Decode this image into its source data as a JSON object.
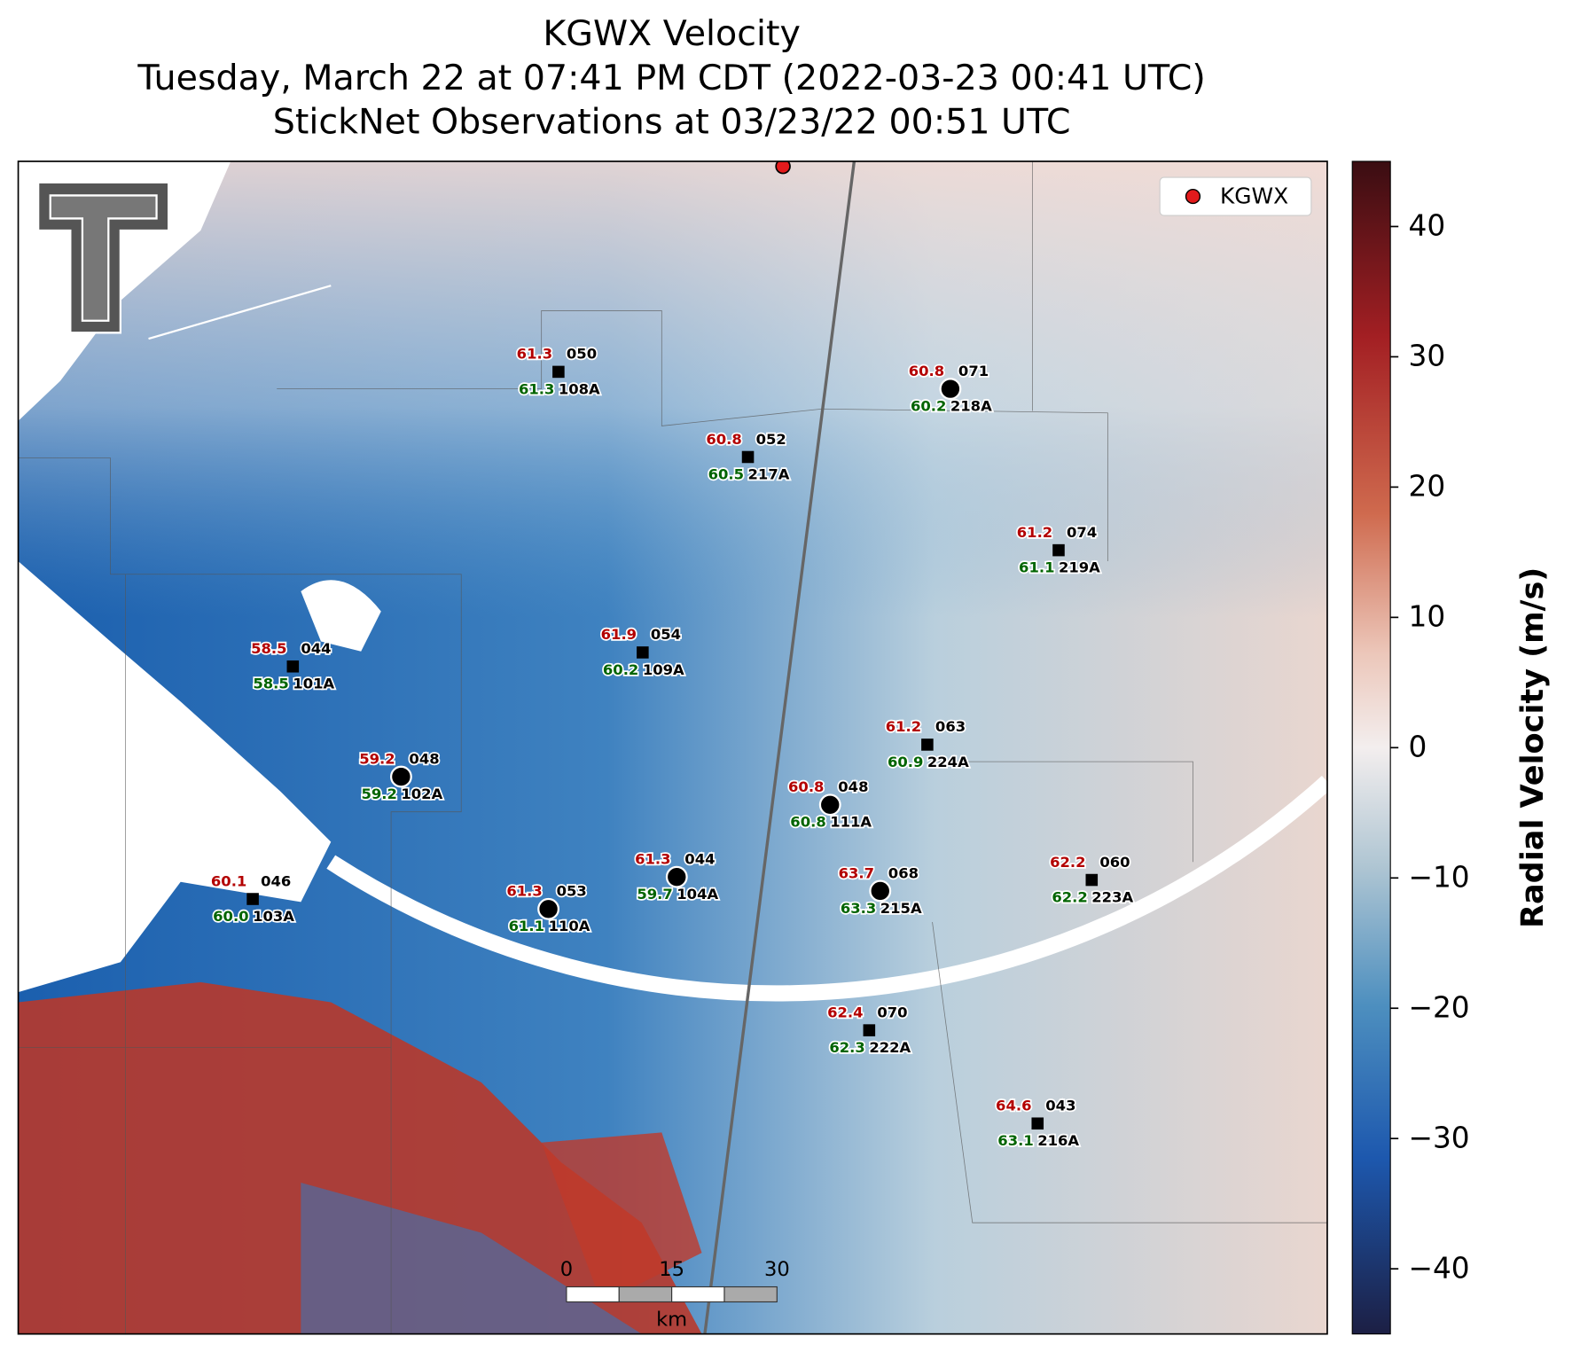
{
  "header": {
    "title": "KGWX Velocity",
    "subtitle": "Tuesday, March 22 at 07:41 PM CDT (2022-03-23 00:41 UTC)",
    "observations": "StickNet Observations at 03/23/22 00:51 UTC"
  },
  "legend": {
    "label": "KGWX",
    "color": "#e31a1c"
  },
  "colorbar": {
    "label": "Radial Velocity (m/s)",
    "lim": [
      -45,
      45
    ],
    "ticks": [
      {
        "value": -40,
        "label": "−40"
      },
      {
        "value": -30,
        "label": "−30"
      },
      {
        "value": -20,
        "label": "−20"
      },
      {
        "value": -10,
        "label": "−10"
      },
      0,
      10,
      20,
      30,
      40
    ]
  },
  "scale_bar": {
    "ticks": [
      0,
      15,
      30
    ],
    "unit": "km"
  },
  "stations": [
    {
      "id": "108A",
      "temp": "61.3",
      "pressure": "050",
      "dewpoint": "61.3",
      "marker": "square"
    },
    {
      "id": "218A",
      "temp": "60.8",
      "pressure": "071",
      "dewpoint": "60.2",
      "marker": "circle"
    },
    {
      "id": "217A",
      "temp": "60.8",
      "pressure": "052",
      "dewpoint": "60.5",
      "marker": "square"
    },
    {
      "id": "219A",
      "temp": "61.2",
      "pressure": "074",
      "dewpoint": "61.1",
      "marker": "square"
    },
    {
      "id": "101A",
      "temp": "58.5",
      "pressure": "044",
      "dewpoint": "58.5",
      "marker": "square"
    },
    {
      "id": "109A",
      "temp": "61.9",
      "pressure": "054",
      "dewpoint": "60.2",
      "marker": "square"
    },
    {
      "id": "224A",
      "temp": "61.2",
      "pressure": "063",
      "dewpoint": "60.9",
      "marker": "square"
    },
    {
      "id": "102A",
      "temp": "59.2",
      "pressure": "048",
      "dewpoint": "59.2",
      "marker": "circle"
    },
    {
      "id": "111A",
      "temp": "60.8",
      "pressure": "048",
      "dewpoint": "60.8",
      "marker": "circle"
    },
    {
      "id": "103A",
      "temp": "60.1",
      "pressure": "046",
      "dewpoint": "60.0",
      "marker": "square"
    },
    {
      "id": "110A",
      "temp": "61.3",
      "pressure": "053",
      "dewpoint": "61.1",
      "marker": "circle"
    },
    {
      "id": "104A",
      "temp": "61.3",
      "pressure": "044",
      "dewpoint": "59.7",
      "marker": "circle"
    },
    {
      "id": "215A",
      "temp": "63.7",
      "pressure": "068",
      "dewpoint": "63.3",
      "marker": "circle"
    },
    {
      "id": "223A",
      "temp": "62.2",
      "pressure": "060",
      "dewpoint": "62.2",
      "marker": "square"
    },
    {
      "id": "222A",
      "temp": "62.4",
      "pressure": "070",
      "dewpoint": "62.3",
      "marker": "square"
    },
    {
      "id": "216A",
      "temp": "64.6",
      "pressure": "043",
      "dewpoint": "63.1",
      "marker": "square"
    }
  ]
}
